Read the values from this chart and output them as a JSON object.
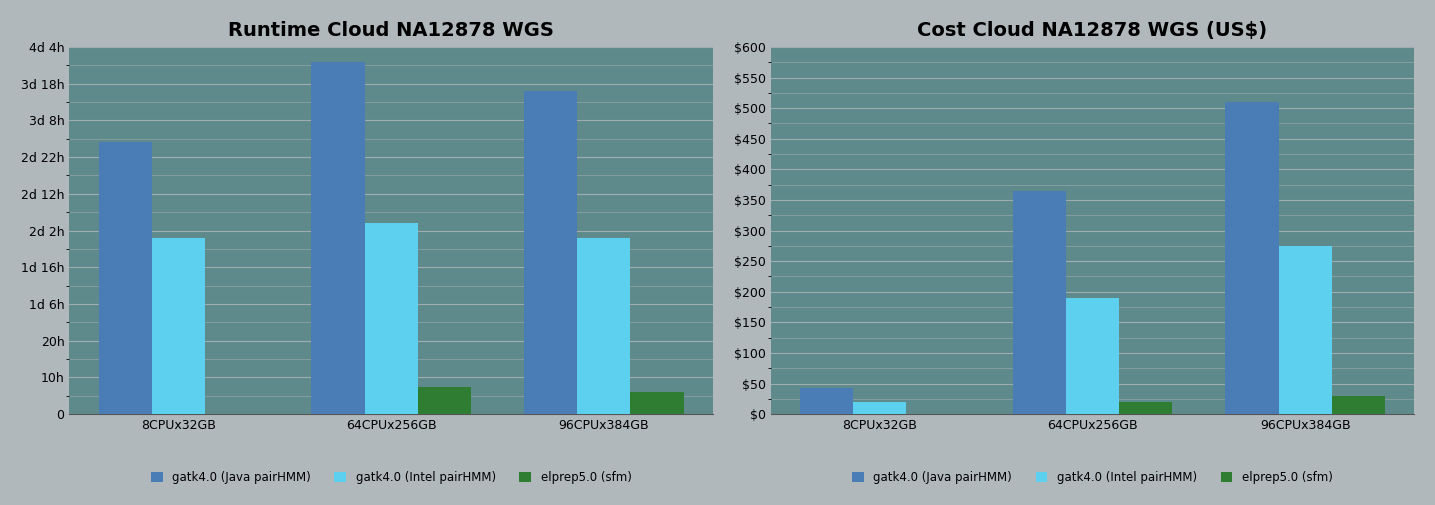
{
  "runtime_title": "Runtime Cloud NA12878 WGS",
  "cost_title": "Cost Cloud NA12878 WGS (US$)",
  "categories": [
    "8CPUx32GB",
    "64CPUx256GB",
    "96CPUx384GB"
  ],
  "runtime_values_hours": {
    "gatk_java": [
      74,
      96,
      88
    ],
    "gatk_intel": [
      48,
      52,
      48
    ],
    "elprep": [
      0,
      7.5,
      6
    ]
  },
  "cost_values": {
    "gatk_java": [
      42,
      365,
      510
    ],
    "gatk_intel": [
      20,
      190,
      275
    ],
    "elprep": [
      0,
      20,
      30
    ]
  },
  "colors": {
    "gatk_java": "#4A7CB5",
    "gatk_intel": "#5DD0F0",
    "elprep": "#2E7D32"
  },
  "legend_labels": [
    "gatk4.0 (Java pairHMM)",
    "gatk4.0 (Intel pairHMM)",
    "elprep5.0 (sfm)"
  ],
  "runtime_ytick_hours": [
    0,
    10,
    20,
    30,
    40,
    50,
    60,
    70,
    80,
    90,
    100
  ],
  "runtime_ytick_labels": [
    "0",
    "10h",
    "20h",
    "1d 6h",
    "1d 16h",
    "2d 2h",
    "2d 12h",
    "2d 22h",
    "3d 8h",
    "3d 18h",
    "4d 4h"
  ],
  "runtime_ylim": [
    0,
    100
  ],
  "cost_yticks": [
    0,
    50,
    100,
    150,
    200,
    250,
    300,
    350,
    400,
    450,
    500,
    550,
    600
  ],
  "cost_ylim": [
    0,
    600
  ],
  "plot_bg_color": "#5F8A8B",
  "fig_bg_color": "#B0B8BC",
  "grid_color": "#A0ADB0",
  "bar_width": 0.25,
  "title_fontsize": 14,
  "tick_fontsize": 9,
  "legend_fontsize": 8.5
}
